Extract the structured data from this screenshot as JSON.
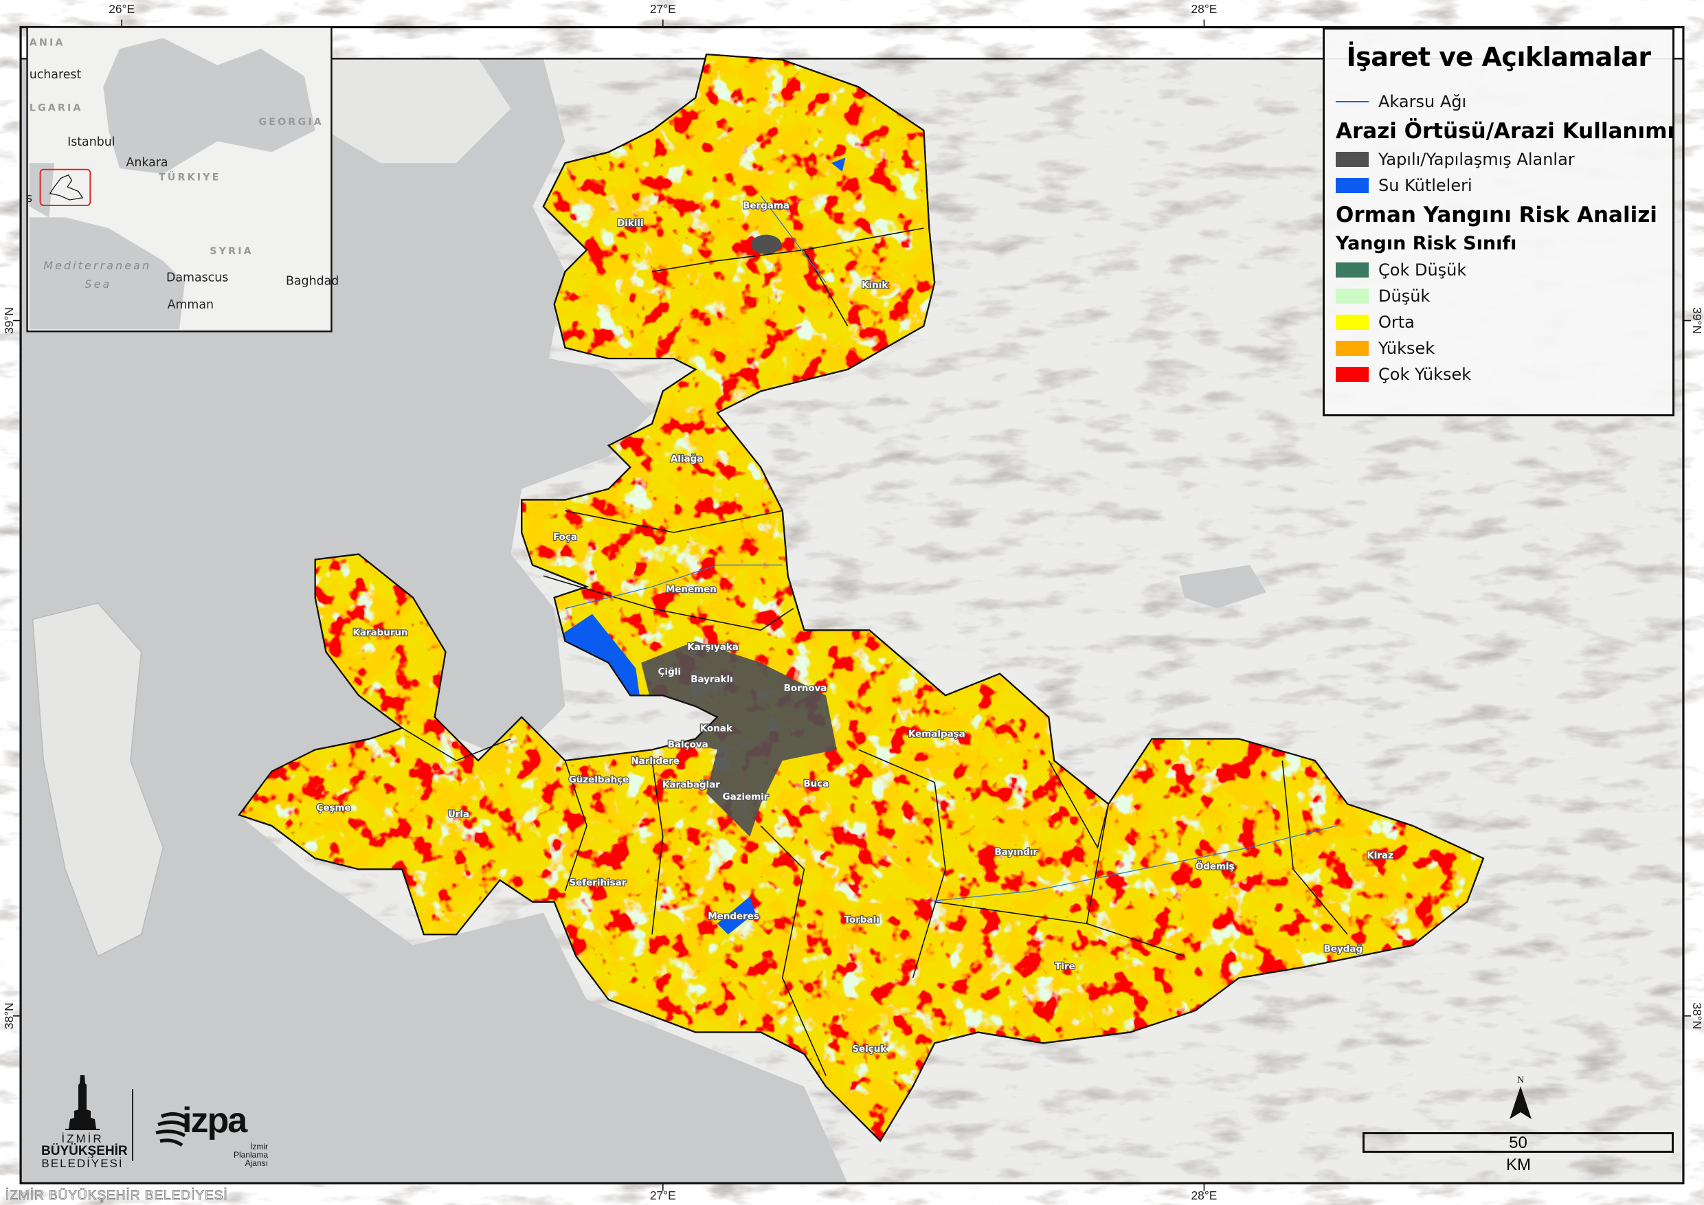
{
  "legend": {
    "title": "İşaret ve Açıklamalar",
    "stream": {
      "label": "Akarsu Ağı",
      "color": "#1f5fd6"
    },
    "landcover_heading": "Arazi Örtüsü/Arazi Kullanımı",
    "landcover": [
      {
        "label": "Yapılı/Yapılaşmış Alanlar",
        "color": "#505050"
      },
      {
        "label": "Su Kütleleri",
        "color": "#0a5cf0"
      }
    ],
    "risk_heading": "Orman Yangını Risk Analizi",
    "risk_subheading": "Yangın Risk Sınıfı",
    "risk_classes": [
      {
        "label": "Çok Düşük",
        "color": "#3c7a62"
      },
      {
        "label": "Düşük",
        "color": "#ccfbc6"
      },
      {
        "label": "Orta",
        "color": "#ffff00"
      },
      {
        "label": "Yüksek",
        "color": "#ffa900"
      },
      {
        "label": "Çok Yüksek",
        "color": "#ff0000"
      }
    ]
  },
  "graticule": {
    "top": [
      "26°E",
      "27°E",
      "28°E"
    ],
    "bottom": [
      "27°E",
      "28°E"
    ],
    "left": [
      "39°N",
      "38°N"
    ],
    "right": [
      "39°N",
      "38°N"
    ]
  },
  "inset": {
    "cities": [
      "ucharest",
      "Istanbul",
      "Ankara",
      "Damascus",
      "Amman",
      "Baghdad",
      "s"
    ],
    "countries": [
      "ANIA",
      "LGARIA",
      "GEORGIA",
      "TÜRKIYE",
      "SYRIA"
    ],
    "sea": [
      "Mediterranean",
      "Sea"
    ],
    "highlight_color": "#e02020"
  },
  "districts": [
    "Dikili",
    "Bergama",
    "Kınık",
    "Aliağa",
    "Foça",
    "Menemen",
    "Karaburun",
    "Karşıyaka",
    "Bayraklı",
    "Çiğli",
    "Bornova",
    "Konak",
    "Balçova",
    "Narlıdere",
    "Güzelbahçe",
    "Karabağlar",
    "Gaziemir",
    "Buca",
    "Kemalpaşa",
    "Çeşme",
    "Urla",
    "Seferihisar",
    "Menderes",
    "Torbalı",
    "Bayındır",
    "Ödemiş",
    "Kiraz",
    "Beydağ",
    "Tire",
    "Selçuk"
  ],
  "scale": {
    "value": "50",
    "unit": "KM"
  },
  "north": "N",
  "logos": {
    "ibb": [
      "İZMİR",
      "BÜYÜKŞEHİR",
      "BELEDİYESİ"
    ],
    "izpa": {
      "name": "izpa",
      "lines": [
        "İzmir",
        "Planlama",
        "Ajansı"
      ]
    }
  },
  "watermark": "İZMİR BÜYÜKŞEHİR BELEDİYESİ"
}
